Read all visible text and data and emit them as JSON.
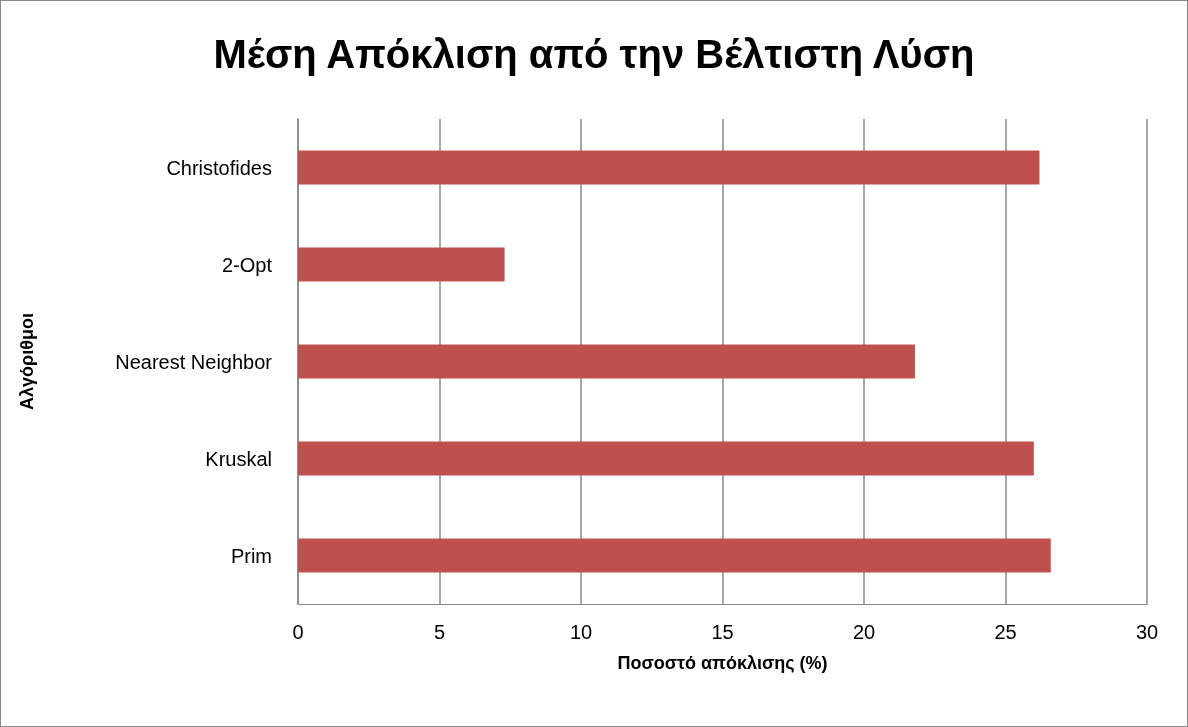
{
  "chart_data": {
    "type": "bar",
    "orientation": "horizontal",
    "title": "Μέση Απόκλιση από την Βέλτιστη Λύση",
    "xlabel": "Ποσοστό απόκλισης (%)",
    "ylabel": "Αλγόριθμοι",
    "categories": [
      "Christofides",
      "2-Opt",
      "Nearest Neighbor",
      "Kruskal",
      "Prim"
    ],
    "values": [
      26.2,
      7.3,
      21.8,
      26.0,
      26.6
    ],
    "color": "#c0504d",
    "xlim": [
      0,
      30
    ],
    "xticks": [
      0,
      5,
      10,
      15,
      20,
      25,
      30
    ],
    "grid": "x"
  }
}
